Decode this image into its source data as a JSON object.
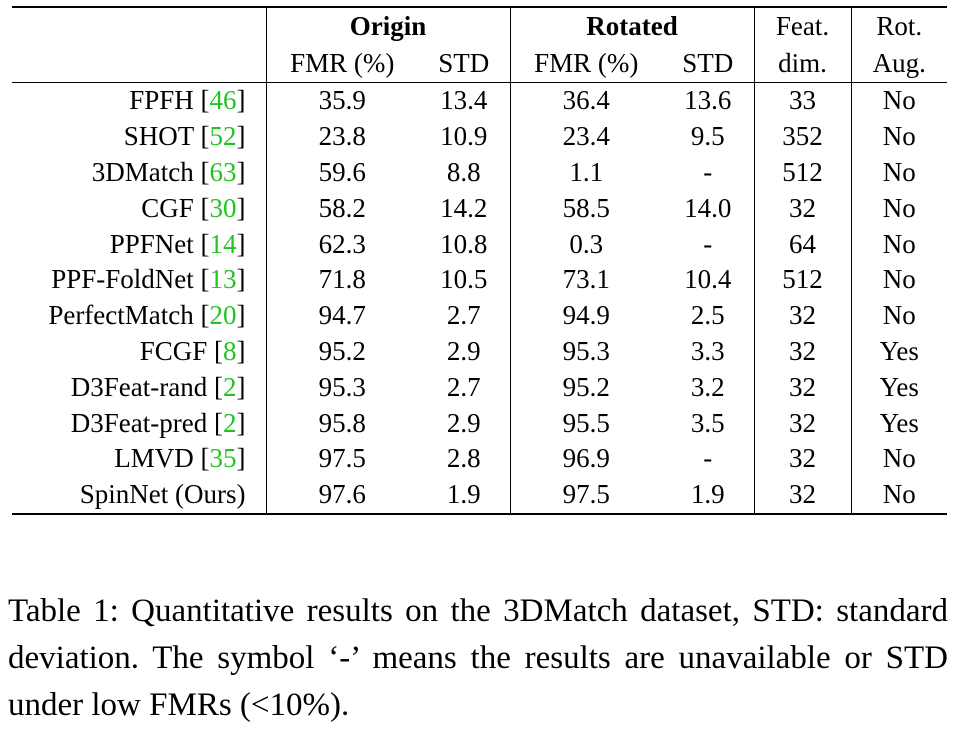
{
  "table": {
    "group_headers": {
      "origin": "Origin",
      "rotated": "Rotated",
      "feat": "Feat.",
      "rot": "Rot."
    },
    "sub_headers": {
      "origin_fmr": "FMR (%)",
      "origin_std": "STD",
      "rotated_fmr": "FMR (%)",
      "rotated_std": "STD",
      "feat": "dim.",
      "rot": "Aug."
    },
    "rows": [
      {
        "method": "FPFH",
        "cite": "46",
        "origin_fmr": "35.9",
        "origin_std": "13.4",
        "rotated_fmr": "36.4",
        "rotated_std": "13.6",
        "feat_dim": "33",
        "rot_aug": "No"
      },
      {
        "method": "SHOT",
        "cite": "52",
        "origin_fmr": "23.8",
        "origin_std": "10.9",
        "rotated_fmr": "23.4",
        "rotated_std": "9.5",
        "feat_dim": "352",
        "rot_aug": "No"
      },
      {
        "method": "3DMatch",
        "cite": "63",
        "origin_fmr": "59.6",
        "origin_std": "8.8",
        "rotated_fmr": "1.1",
        "rotated_std": "-",
        "feat_dim": "512",
        "rot_aug": "No"
      },
      {
        "method": "CGF",
        "cite": "30",
        "origin_fmr": "58.2",
        "origin_std": "14.2",
        "rotated_fmr": "58.5",
        "rotated_std": "14.0",
        "feat_dim": "32",
        "rot_aug": "No"
      },
      {
        "method": "PPFNet",
        "cite": "14",
        "origin_fmr": "62.3",
        "origin_std": "10.8",
        "rotated_fmr": "0.3",
        "rotated_std": "-",
        "feat_dim": "64",
        "rot_aug": "No"
      },
      {
        "method": "PPF-FoldNet",
        "cite": "13",
        "origin_fmr": "71.8",
        "origin_std": "10.5",
        "rotated_fmr": "73.1",
        "rotated_std": "10.4",
        "feat_dim": "512",
        "rot_aug": "No"
      },
      {
        "method": "PerfectMatch",
        "cite": "20",
        "origin_fmr": "94.7",
        "origin_std": "2.7",
        "rotated_fmr": "94.9",
        "rotated_std": "2.5",
        "feat_dim": "32",
        "rot_aug": "No"
      },
      {
        "method": "FCGF",
        "cite": "8",
        "origin_fmr": "95.2",
        "origin_std": "2.9",
        "rotated_fmr": "95.3",
        "rotated_std": "3.3",
        "feat_dim": "32",
        "rot_aug": "Yes"
      },
      {
        "method": "D3Feat-rand",
        "cite": "2",
        "origin_fmr": "95.3",
        "origin_std": "2.7",
        "rotated_fmr": "95.2",
        "rotated_std": "3.2",
        "feat_dim": "32",
        "rot_aug": "Yes"
      },
      {
        "method": "D3Feat-pred",
        "cite": "2",
        "origin_fmr": "95.8",
        "origin_std": "2.9",
        "rotated_fmr": "95.5",
        "rotated_std": "3.5",
        "feat_dim": "32",
        "rot_aug": "Yes"
      },
      {
        "method": "LMVD",
        "cite": "35",
        "origin_fmr": "97.5",
        "origin_std": "2.8",
        "rotated_fmr": "96.9",
        "rotated_std": "-",
        "feat_dim": "32",
        "rot_aug": "No"
      }
    ],
    "ours": {
      "method": "SpinNet (Ours)",
      "origin_fmr": "97.6",
      "origin_std": "1.9",
      "rotated_fmr": "97.5",
      "rotated_std": "1.9",
      "feat_dim": "32",
      "rot_aug": "No"
    }
  },
  "caption": "Table 1: Quantitative results on the 3DMatch dataset, STD: standard deviation.  The symbol ‘-’ means the results are unavailable or STD under low FMRs (<10%).",
  "colors": {
    "citation": "#22c422",
    "text": "#000000",
    "background": "#ffffff"
  }
}
